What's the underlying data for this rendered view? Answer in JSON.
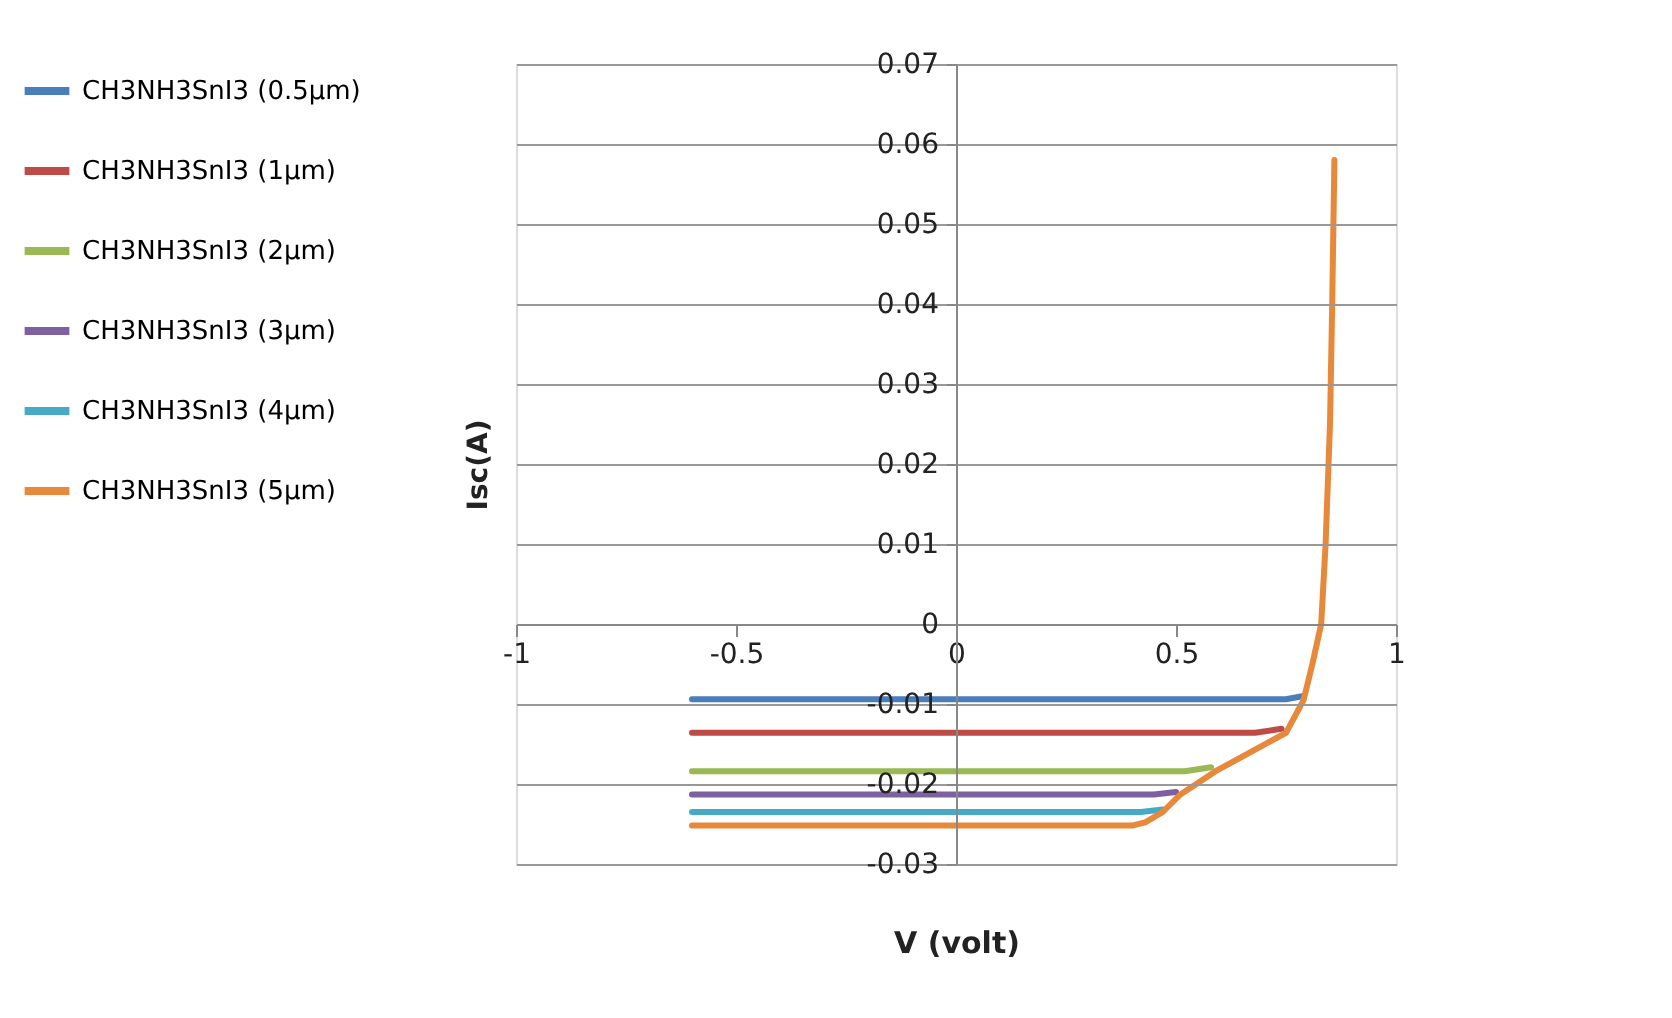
{
  "chart_data": {
    "type": "line",
    "xlabel": "V (volt)",
    "ylabel": "Isc(A)",
    "xlim": [
      -1,
      1
    ],
    "xticks": [
      -1,
      -0.5,
      0,
      0.5,
      1
    ],
    "ylim": [
      -0.03,
      0.07
    ],
    "yticks": [
      -0.03,
      -0.02,
      -0.01,
      0,
      0.01,
      0.02,
      0.03,
      0.04,
      0.05,
      0.06,
      0.07
    ],
    "grid": "y",
    "legend": "left",
    "marker": "none",
    "line_style": "solid",
    "series": [
      {
        "name": "CH3NH3SnI3 (0.5µm)",
        "color": "#4a7ebb",
        "x": [
          -0.6,
          0.75,
          0.79
        ],
        "values": [
          -0.0094,
          -0.0094,
          -0.009
        ]
      },
      {
        "name": "CH3NH3SnI3 (1µm)",
        "color": "#be4b48",
        "x": [
          -0.6,
          0.68,
          0.74
        ],
        "values": [
          -0.0136,
          -0.0136,
          -0.0131
        ]
      },
      {
        "name": "CH3NH3SnI3 (2µm)",
        "color": "#98b954",
        "x": [
          -0.6,
          0.52,
          0.58
        ],
        "values": [
          -0.0184,
          -0.0184,
          -0.0179
        ]
      },
      {
        "name": "CH3NH3SnI3 (3µm)",
        "color": "#7d60a0",
        "x": [
          -0.6,
          0.45,
          0.5
        ],
        "values": [
          -0.0213,
          -0.0213,
          -0.021
        ]
      },
      {
        "name": "CH3NH3SnI3 (4µm)",
        "color": "#46aac5",
        "x": [
          -0.6,
          0.42,
          0.47
        ],
        "values": [
          -0.0235,
          -0.0235,
          -0.0232
        ]
      },
      {
        "name": "CH3NH3SnI3 (5µm)",
        "color": "#e8883a",
        "x": [
          -0.6,
          0.4,
          0.43,
          0.47,
          0.51,
          0.59,
          0.75,
          0.79,
          0.81,
          0.83,
          0.84,
          0.85,
          0.855,
          0.86
        ],
        "values": [
          -0.0252,
          -0.0252,
          -0.0248,
          -0.0235,
          -0.0213,
          -0.0184,
          -0.0136,
          -0.0095,
          -0.005,
          0,
          0.01,
          0.025,
          0.04,
          0.058
        ]
      }
    ]
  }
}
